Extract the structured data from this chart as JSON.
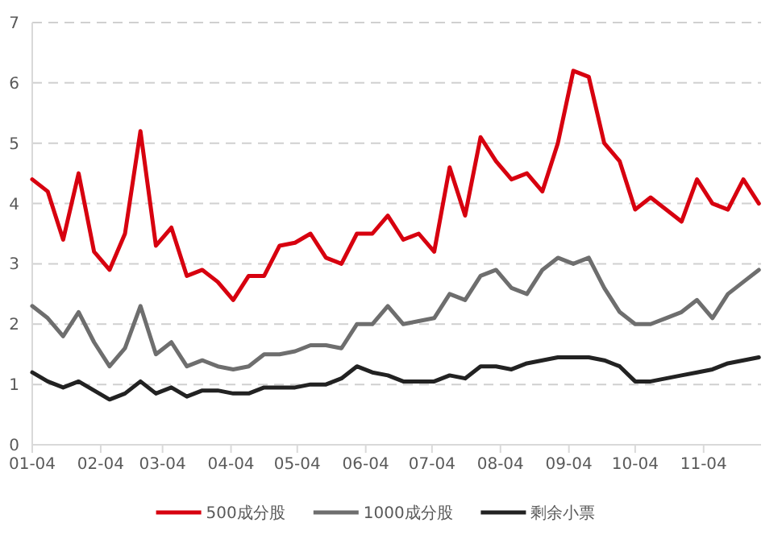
{
  "chart_data": {
    "type": "line",
    "x": [
      "--01-04",
      "--01-11",
      "--01-18",
      "--01-25",
      "--02-01",
      "--02-08",
      "--02-15",
      "--02-22",
      "--03-01",
      "--03-08",
      "--03-15",
      "--03-22",
      "--03-29",
      "--04-05",
      "--04-12",
      "--04-19",
      "--04-26",
      "--05-03",
      "--05-10",
      "--05-17",
      "--05-24",
      "--05-31",
      "--06-07",
      "--06-14",
      "--06-21",
      "--06-28",
      "--07-05",
      "--07-12",
      "--07-19",
      "--07-26",
      "--08-02",
      "--08-09",
      "--08-16",
      "--08-23",
      "--08-30",
      "--09-06",
      "--09-13",
      "--09-20",
      "--09-27",
      "--10-04",
      "--10-11",
      "--10-18",
      "--10-25",
      "--11-01",
      "--11-08",
      "--11-15",
      "--11-22",
      "--11-29"
    ],
    "series": [
      {
        "name": "500成分股",
        "color": "#d7000f",
        "values": [
          4.4,
          4.2,
          3.4,
          4.5,
          3.2,
          2.9,
          3.5,
          5.2,
          3.3,
          3.6,
          2.8,
          2.9,
          2.7,
          2.4,
          2.8,
          2.8,
          3.3,
          3.35,
          3.5,
          3.1,
          3.0,
          3.5,
          3.5,
          3.8,
          3.4,
          3.5,
          3.2,
          4.6,
          3.8,
          5.1,
          4.7,
          4.4,
          4.5,
          4.2,
          5.0,
          6.2,
          6.1,
          5.0,
          4.7,
          3.9,
          4.1,
          3.9,
          3.7,
          4.4,
          4.0,
          3.9,
          4.4,
          4.0
        ]
      },
      {
        "name": "1000成分股",
        "color": "#6e6e6e",
        "values": [
          2.3,
          2.1,
          1.8,
          2.2,
          1.7,
          1.3,
          1.6,
          2.3,
          1.5,
          1.7,
          1.3,
          1.4,
          1.3,
          1.25,
          1.3,
          1.5,
          1.5,
          1.55,
          1.65,
          1.65,
          1.6,
          2.0,
          2.0,
          2.3,
          2.0,
          2.05,
          2.1,
          2.5,
          2.4,
          2.8,
          2.9,
          2.6,
          2.5,
          2.9,
          3.1,
          3.0,
          3.1,
          2.6,
          2.2,
          2.0,
          2.0,
          2.1,
          2.2,
          2.4,
          2.1,
          2.5,
          2.7,
          2.9
        ]
      },
      {
        "name": "剩余小票",
        "color": "#222222",
        "values": [
          1.2,
          1.05,
          0.95,
          1.05,
          0.9,
          0.75,
          0.85,
          1.05,
          0.85,
          0.95,
          0.8,
          0.9,
          0.9,
          0.85,
          0.85,
          0.95,
          0.95,
          0.95,
          1.0,
          1.0,
          1.1,
          1.3,
          1.2,
          1.15,
          1.05,
          1.05,
          1.05,
          1.15,
          1.1,
          1.3,
          1.3,
          1.25,
          1.35,
          1.4,
          1.45,
          1.45,
          1.45,
          1.4,
          1.3,
          1.05,
          1.05,
          1.1,
          1.15,
          1.2,
          1.25,
          1.35,
          1.4,
          1.45
        ]
      }
    ],
    "xlim": [
      "--01-04",
      "--11-30"
    ],
    "xticks": [
      {
        "value": "--01-04",
        "label": "01-04"
      },
      {
        "value": "--02-04",
        "label": "02-04"
      },
      {
        "value": "--03-04",
        "label": "03-04"
      },
      {
        "value": "--04-04",
        "label": "04-04"
      },
      {
        "value": "--05-04",
        "label": "05-04"
      },
      {
        "value": "--06-04",
        "label": "06-04"
      },
      {
        "value": "--07-04",
        "label": "07-04"
      },
      {
        "value": "--08-04",
        "label": "08-04"
      },
      {
        "value": "--09-04",
        "label": "09-04"
      },
      {
        "value": "--10-04",
        "label": "10-04"
      },
      {
        "value": "--11-04",
        "label": "11-04"
      }
    ],
    "ylim": [
      0,
      7
    ],
    "yticks": [
      0,
      1,
      2,
      3,
      4,
      5,
      6,
      7
    ],
    "grid": "y",
    "legend": "bottom",
    "marker": "none",
    "line_style": "solid"
  }
}
